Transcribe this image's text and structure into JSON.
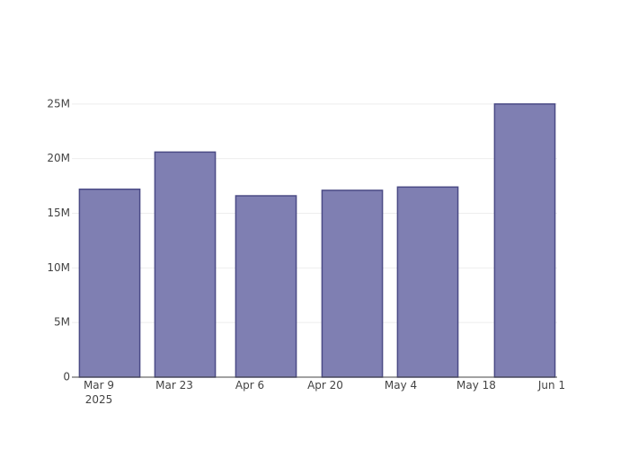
{
  "chart_data": {
    "type": "bar",
    "x": [
      "2025-03-11",
      "2025-03-25",
      "2025-04-09",
      "2025-04-25",
      "2025-05-09",
      "2025-05-27"
    ],
    "values": [
      17200000,
      20600000,
      16600000,
      17100000,
      17400000,
      25000000
    ],
    "color": "#7f7fb2",
    "line_color": "#4b4b86",
    "xlim": [
      "2025-03-04",
      "2025-06-02"
    ],
    "xticks": [
      {
        "value": "2025-03-09",
        "label": [
          "Mar 9",
          "2025"
        ]
      },
      {
        "value": "2025-03-23",
        "label": [
          "Mar 23"
        ]
      },
      {
        "value": "2025-04-06",
        "label": [
          "Apr 6"
        ]
      },
      {
        "value": "2025-04-20",
        "label": [
          "Apr 20"
        ]
      },
      {
        "value": "2025-05-04",
        "label": [
          "May 4"
        ]
      },
      {
        "value": "2025-05-18",
        "label": [
          "May 18"
        ]
      },
      {
        "value": "2025-06-01",
        "label": [
          "Jun 1"
        ]
      }
    ],
    "ylim": [
      0,
      26300000
    ],
    "yticks": [
      0,
      {
        "value": 5000000,
        "label": "5M"
      },
      {
        "value": 10000000,
        "label": "10M"
      },
      {
        "value": 15000000,
        "label": "15M"
      },
      {
        "value": 20000000,
        "label": "20M"
      },
      {
        "value": 25000000,
        "label": "25M"
      }
    ],
    "grid": true
  }
}
